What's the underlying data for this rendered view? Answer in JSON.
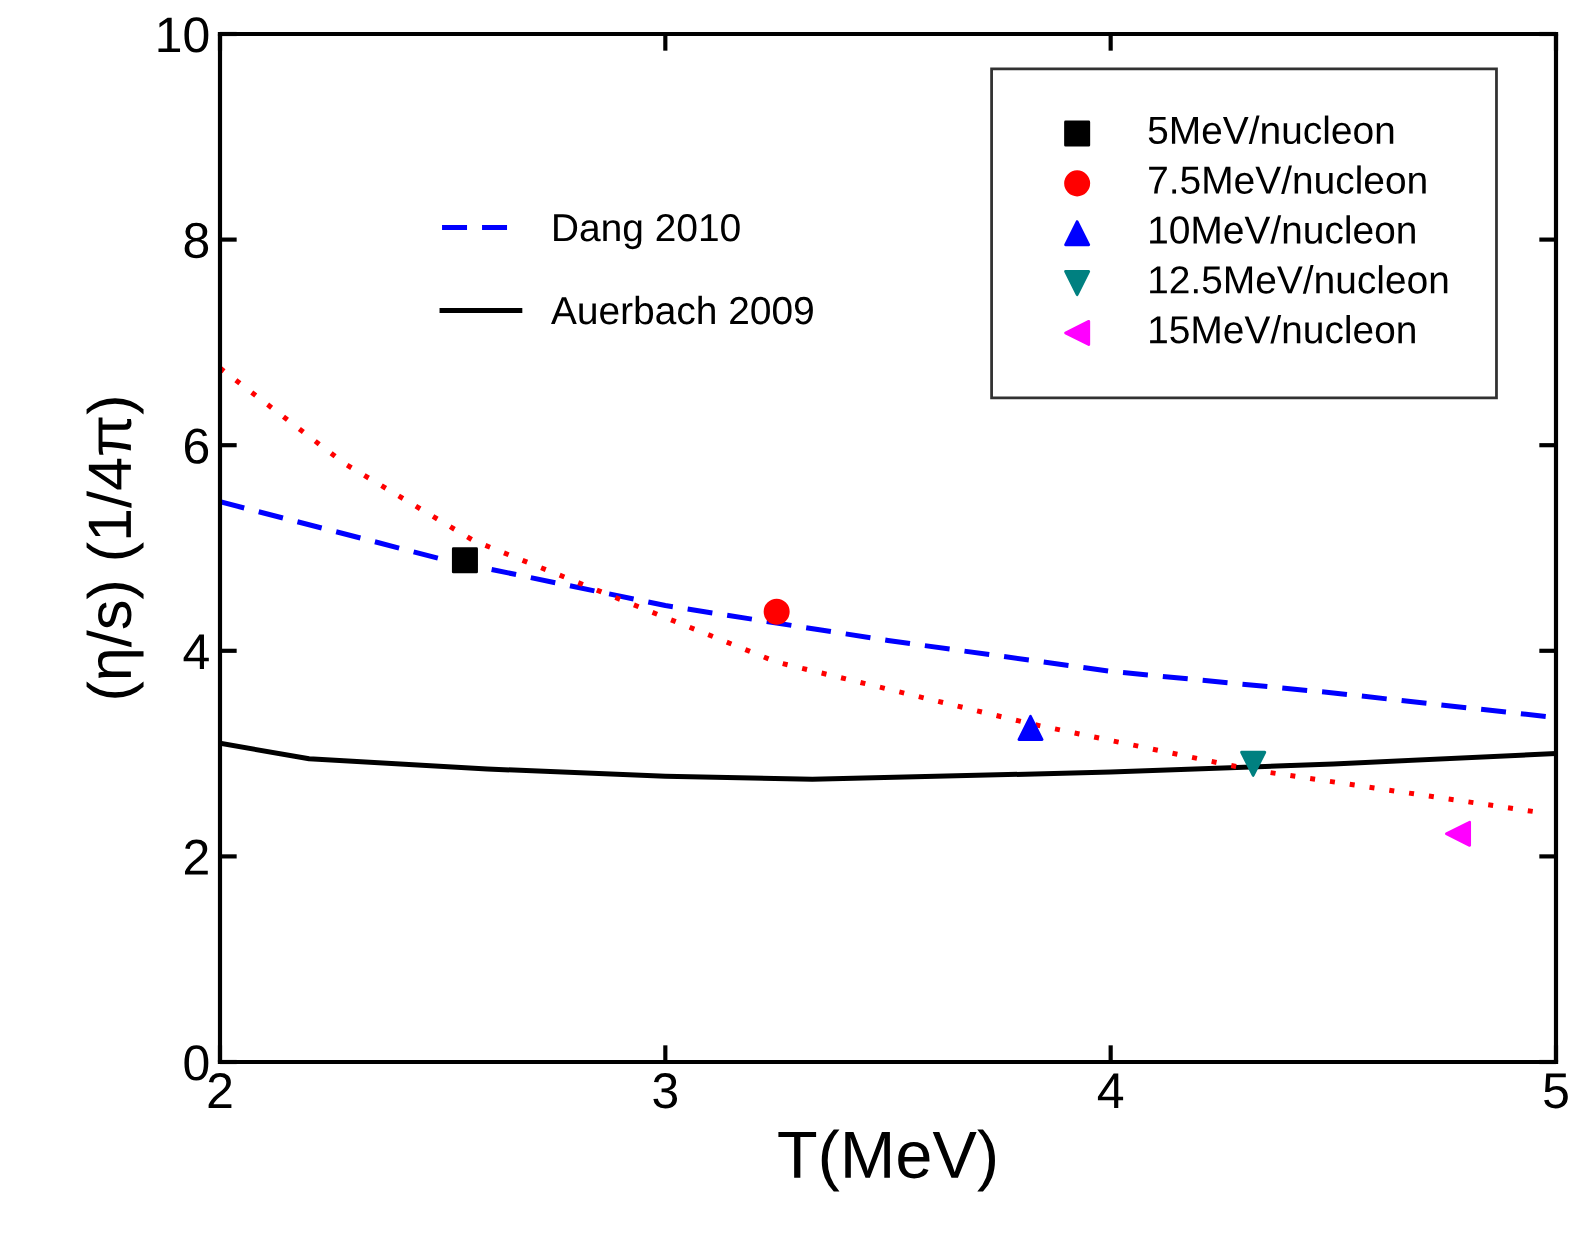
{
  "chart_data": {
    "type": "scatter",
    "xlabel": "T(MeV)",
    "ylabel": "(η/s) (1/4π)",
    "xlim": [
      2,
      5
    ],
    "ylim": [
      0,
      10
    ],
    "xticks": [
      2,
      3,
      4,
      5
    ],
    "yticks": [
      0,
      2,
      4,
      6,
      8,
      10
    ],
    "grid": false,
    "legend": "top right",
    "series": [
      {
        "name": "5MeV/nucleon",
        "color": "#000000",
        "marker": "square",
        "x": [
          2.55
        ],
        "values": [
          4.88
        ]
      },
      {
        "name": "7.5MeV/nucleon",
        "color": "#ff0000",
        "marker": "circle",
        "x": [
          3.25
        ],
        "values": [
          4.38
        ]
      },
      {
        "name": "10MeV/nucleon",
        "color": "#0000ff",
        "marker": "triangle",
        "x": [
          3.82
        ],
        "values": [
          3.25
        ]
      },
      {
        "name": "12.5MeV/nucleon",
        "color": "#008080",
        "marker": "triangle_down",
        "x": [
          4.32
        ],
        "values": [
          2.9
        ]
      },
      {
        "name": "15MeV/nucleon",
        "color": "#ff00ff",
        "marker": "triangle_left",
        "x": [
          4.78
        ],
        "values": [
          2.22
        ]
      },
      {
        "name": "Dang 2010",
        "type": "line",
        "line_style": "dashed",
        "color": "#0000ff",
        "marker": "none",
        "x": [
          2,
          2.5,
          3,
          3.5,
          4,
          4.5,
          5
        ],
        "values": [
          5.45,
          4.89,
          4.44,
          4.1,
          3.8,
          3.59,
          3.35
        ]
      },
      {
        "name": "Auerbach 2009",
        "type": "line",
        "line_style": "solid",
        "color": "#000000",
        "marker": "none",
        "x": [
          2,
          2.2,
          2.6,
          3,
          3.33,
          4,
          4.5,
          5
        ],
        "values": [
          3.1,
          2.95,
          2.85,
          2.78,
          2.75,
          2.82,
          2.9,
          3.0
        ]
      },
      {
        "type": "line",
        "line_style": "dotted",
        "color": "#ff0000",
        "marker": "none",
        "x": [
          2,
          2.28,
          2.57,
          3.25,
          3.82,
          4.32,
          4.96
        ],
        "values": [
          6.75,
          5.82,
          5.07,
          3.89,
          3.29,
          2.84,
          2.43
        ]
      }
    ]
  }
}
